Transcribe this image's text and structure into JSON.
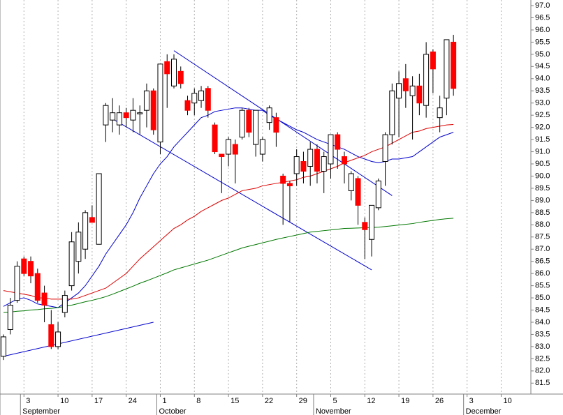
{
  "chart_data": {
    "type": "candlestick",
    "categories": [
      null,
      null,
      null,
      "3",
      null,
      null,
      null,
      null,
      "10",
      null,
      null,
      null,
      null,
      "17",
      null,
      null,
      null,
      null,
      "24",
      null,
      null,
      null,
      null,
      "1",
      null,
      null,
      null,
      null,
      "8",
      null,
      null,
      null,
      null,
      "15",
      null,
      null,
      null,
      null,
      "22",
      null,
      null,
      null,
      null,
      "29",
      null,
      null,
      null,
      null,
      "5",
      null,
      null,
      null,
      null,
      "12",
      null,
      null,
      null,
      null,
      "19",
      null,
      null,
      null,
      null,
      "26",
      null,
      null,
      null,
      null,
      "3",
      null,
      null,
      null,
      null,
      "10"
    ],
    "months": [
      null,
      null,
      null,
      "September",
      null,
      null,
      null,
      null,
      null,
      null,
      null,
      null,
      null,
      null,
      null,
      null,
      null,
      null,
      null,
      null,
      null,
      null,
      null,
      "October",
      null,
      null,
      null,
      null,
      null,
      null,
      null,
      null,
      null,
      null,
      null,
      null,
      null,
      null,
      null,
      null,
      null,
      null,
      null,
      null,
      null,
      null,
      "November",
      null,
      null,
      null,
      null,
      null,
      null,
      null,
      null,
      null,
      null,
      null,
      null,
      null,
      null,
      null,
      null,
      null,
      null,
      null,
      null,
      null,
      "December",
      null,
      null,
      null,
      null,
      null
    ],
    "open": [
      82.6,
      83.7,
      84.9,
      86.6,
      86.5,
      86.0,
      85.2,
      83.9,
      83.0,
      84.4,
      85.5,
      86.5,
      87.0,
      88.3,
      87.2,
      92.1,
      92.3,
      92.1,
      92.6,
      92.3,
      92.6,
      92.7,
      93.5,
      91.4,
      94.7,
      93.7,
      94.3,
      93.1,
      93.0,
      93.1,
      93.6,
      92.1,
      90.9,
      90.9,
      91.3,
      91.6,
      92.7,
      91.3,
      90.9,
      92.2,
      92.4,
      90.0,
      89.7,
      90.1,
      90.6,
      90.4,
      91.1,
      90.2,
      90.5,
      91.7,
      90.8,
      89.4,
      89.9,
      88.1,
      87.4,
      88.7,
      90.6,
      91.7,
      93.2,
      94.0,
      93.3,
      93.7,
      92.9,
      95.1,
      92.4,
      93.2,
      95.5,
      null,
      null,
      null,
      null,
      null,
      null,
      null
    ],
    "high": [
      83.5,
      85.0,
      86.5,
      86.7,
      86.7,
      86.2,
      85.5,
      84.5,
      84.0,
      85.3,
      87.7,
      88.1,
      88.6,
      88.8,
      90.1,
      93.0,
      93.2,
      92.9,
      92.8,
      93.2,
      92.9,
      93.8,
      93.6,
      94.6,
      95.0,
      95.0,
      94.5,
      93.3,
      93.6,
      93.7,
      93.7,
      92.2,
      90.9,
      91.6,
      91.5,
      92.8,
      92.8,
      92.7,
      91.6,
      92.9,
      92.6,
      90.1,
      89.8,
      91.1,
      91.0,
      91.4,
      91.3,
      91.0,
      91.7,
      91.8,
      91.0,
      90.2,
      90.0,
      88.3,
      88.8,
      89.9,
      91.8,
      93.8,
      94.3,
      94.6,
      94.1,
      94.2,
      95.5,
      95.2,
      93.3,
      95.6,
      95.8,
      null,
      null,
      null,
      null,
      null,
      null,
      null
    ],
    "low": [
      82.45,
      83.5,
      84.8,
      85.9,
      85.6,
      84.8,
      84.0,
      82.9,
      82.9,
      84.2,
      85.3,
      86.0,
      86.6,
      88.1,
      87.2,
      91.4,
      91.8,
      91.7,
      92.0,
      91.8,
      91.7,
      92.0,
      91.7,
      90.9,
      92.8,
      93.6,
      93.6,
      92.5,
      92.5,
      92.8,
      92.4,
      90.9,
      89.3,
      90.4,
      89.7,
      91.5,
      91.6,
      90.8,
      90.6,
      91.9,
      91.2,
      88.0,
      88.1,
      89.6,
      89.7,
      89.6,
      89.7,
      89.3,
      89.9,
      90.3,
      89.7,
      89.0,
      88.0,
      86.6,
      86.7,
      88.6,
      89.6,
      91.3,
      91.6,
      92.8,
      91.5,
      92.5,
      92.4,
      93.4,
      91.8,
      92.5,
      93.3,
      null,
      null,
      null,
      null,
      null,
      null,
      null
    ],
    "close": [
      83.4,
      84.7,
      86.3,
      86.0,
      85.9,
      84.9,
      84.7,
      83.0,
      83.6,
      85.1,
      87.3,
      87.7,
      88.5,
      88.1,
      90.1,
      92.9,
      92.6,
      92.6,
      92.4,
      92.7,
      92.6,
      93.5,
      91.9,
      94.6,
      94.2,
      94.8,
      93.8,
      92.7,
      93.4,
      93.5,
      92.7,
      91.0,
      90.8,
      91.5,
      90.9,
      92.7,
      91.8,
      92.7,
      91.5,
      92.8,
      91.8,
      89.7,
      89.6,
      90.8,
      90.2,
      91.1,
      90.2,
      90.8,
      91.7,
      91.1,
      90.5,
      90.1,
      88.8,
      87.8,
      88.8,
      89.8,
      91.7,
      93.5,
      93.8,
      93.5,
      93.7,
      93.0,
      95.0,
      94.4,
      92.8,
      95.6,
      93.6,
      null,
      null,
      null,
      null,
      null,
      null,
      null
    ],
    "up_color": "#ffffff",
    "down_color": "#ff0000",
    "lines": [
      {
        "color": "#0000cc",
        "values": [
          84.65,
          84.8,
          84.95,
          85.0,
          84.9,
          84.75,
          84.7,
          84.65,
          84.6,
          84.8,
          85.0,
          85.2,
          85.5,
          85.9,
          86.3,
          86.8,
          87.2,
          87.6,
          88.0,
          88.5,
          89.1,
          89.6,
          90.1,
          90.5,
          90.8,
          91.2,
          91.5,
          91.8,
          92.1,
          92.4,
          92.5,
          92.65,
          92.7,
          92.75,
          92.8,
          92.8,
          92.75,
          92.7,
          92.7,
          92.5,
          92.35,
          92.2,
          92.05,
          91.9,
          91.8,
          91.65,
          91.5,
          91.4,
          91.3,
          91.2,
          91.1,
          90.95,
          90.8,
          90.7,
          90.6,
          90.55,
          90.6,
          90.7,
          90.7,
          90.75,
          90.8,
          91.0,
          91.2,
          91.4,
          91.6,
          91.7,
          91.8,
          null,
          null,
          null,
          null,
          null,
          null,
          null
        ]
      },
      {
        "color": "#dd0000",
        "values": [
          85.3,
          85.25,
          85.2,
          85.15,
          85.1,
          85.0,
          85.0,
          84.95,
          84.95,
          84.95,
          84.95,
          85.0,
          85.1,
          85.2,
          85.3,
          85.4,
          85.6,
          85.8,
          86.0,
          86.3,
          86.6,
          86.85,
          87.1,
          87.35,
          87.6,
          87.85,
          88.0,
          88.2,
          88.35,
          88.55,
          88.7,
          88.85,
          89.0,
          89.1,
          89.25,
          89.4,
          89.45,
          89.5,
          89.6,
          89.65,
          89.7,
          89.75,
          89.8,
          89.85,
          89.95,
          90.0,
          90.1,
          90.2,
          90.3,
          90.4,
          90.55,
          90.65,
          90.75,
          90.85,
          91.0,
          91.1,
          91.2,
          91.35,
          91.5,
          91.65,
          91.8,
          91.85,
          91.95,
          92.0,
          92.05,
          92.1,
          92.12,
          null,
          null,
          null,
          null,
          null,
          null,
          null
        ]
      },
      {
        "color": "#007700",
        "values": [
          84.4,
          84.42,
          84.45,
          84.47,
          84.5,
          84.52,
          84.55,
          84.57,
          84.6,
          84.65,
          84.7,
          84.77,
          84.84,
          84.9,
          84.97,
          85.05,
          85.15,
          85.26,
          85.37,
          85.48,
          85.6,
          85.7,
          85.81,
          85.92,
          86.03,
          86.15,
          86.23,
          86.31,
          86.39,
          86.47,
          86.55,
          86.65,
          86.75,
          86.85,
          86.95,
          87.05,
          87.12,
          87.19,
          87.26,
          87.33,
          87.4,
          87.46,
          87.52,
          87.58,
          87.64,
          87.7,
          87.73,
          87.76,
          87.79,
          87.82,
          87.85,
          87.86,
          87.87,
          87.88,
          87.89,
          87.9,
          87.93,
          87.96,
          87.99,
          88.02,
          88.05,
          88.1,
          88.14,
          88.18,
          88.22,
          88.25,
          88.27,
          null,
          null,
          null,
          null,
          null,
          null,
          null
        ]
      }
    ],
    "trendlines": [
      {
        "color": "#0000cc",
        "x": [
          0,
          22
        ],
        "y": [
          82.6,
          84.0
        ]
      },
      {
        "color": "#0000cc",
        "x": [
          16,
          54
        ],
        "y": [
          92.35,
          86.15
        ]
      },
      {
        "color": "#0000cc",
        "x": [
          25,
          57
        ],
        "y": [
          95.15,
          89.2
        ]
      }
    ],
    "ylim": [
      81.05,
      97.23
    ],
    "yticks": [
      {
        "value": 81.5,
        "label": "81.5"
      },
      {
        "value": 82,
        "label": "82.0"
      },
      82.5,
      {
        "value": 83,
        "label": "83.0"
      },
      83.5,
      {
        "value": 84,
        "label": "84.0"
      },
      84.5,
      {
        "value": 85,
        "label": "85.0"
      },
      85.5,
      {
        "value": 86,
        "label": "86.0"
      },
      86.5,
      {
        "value": 87,
        "label": "87.0"
      },
      87.5,
      {
        "value": 88,
        "label": "88.0"
      },
      88.5,
      {
        "value": 89,
        "label": "89.0"
      },
      89.5,
      {
        "value": 90,
        "label": "90.0"
      },
      90.5,
      {
        "value": 91,
        "label": "91.0"
      },
      91.5,
      {
        "value": 92,
        "label": "92.0"
      },
      92.5,
      {
        "value": 93,
        "label": "93.0"
      },
      93.5,
      {
        "value": 94,
        "label": "94.0"
      },
      94.5,
      {
        "value": 95,
        "label": "95.0"
      },
      95.5,
      {
        "value": 96,
        "label": "96.0"
      },
      96.5,
      {
        "value": 97,
        "label": "97.0"
      }
    ],
    "grid": true
  }
}
